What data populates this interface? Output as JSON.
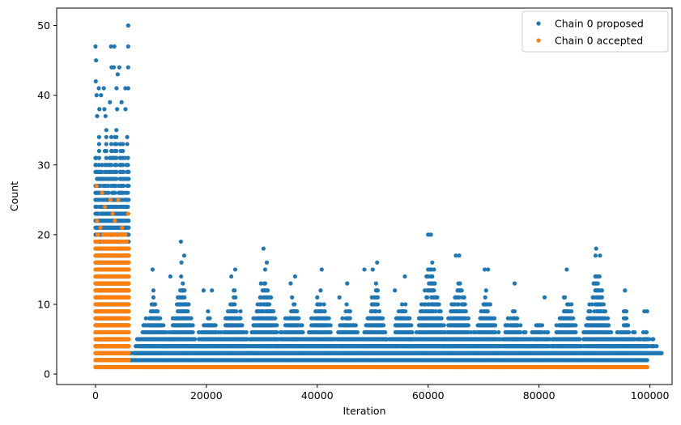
{
  "chart_data": {
    "type": "scatter",
    "title": "",
    "xlabel": "Iteration",
    "ylabel": "Count",
    "xlim": [
      -7000,
      104000
    ],
    "ylim": [
      -1.5,
      52.5
    ],
    "xticks": [
      0,
      20000,
      40000,
      60000,
      80000,
      100000
    ],
    "xtick_labels": [
      "0",
      "20000",
      "40000",
      "60000",
      "80000",
      "100000"
    ],
    "yticks": [
      0,
      10,
      20,
      30,
      40,
      50
    ],
    "ytick_labels": [
      "0",
      "10",
      "20",
      "30",
      "40",
      "50"
    ],
    "grid": false,
    "legend_position": "top-right",
    "series": [
      {
        "name": "Chain 0 proposed",
        "color": "#1f77b4",
        "marker": "circle",
        "bands": [
          {
            "x0": 0,
            "x1": 6000,
            "ymin": 1,
            "ymax": 36,
            "dense": true
          },
          {
            "x0": 6000,
            "x1": 100000,
            "ymin": 1,
            "ymax": 2,
            "dense": true
          }
        ],
        "clusters": [
          {
            "x": 3000,
            "top": 33
          },
          {
            "x": 10500,
            "top": 15
          },
          {
            "x": 15500,
            "top": 17
          },
          {
            "x": 20500,
            "top": 12
          },
          {
            "x": 25000,
            "top": 15
          },
          {
            "x": 30500,
            "top": 18
          },
          {
            "x": 35500,
            "top": 14
          },
          {
            "x": 40500,
            "top": 15
          },
          {
            "x": 45500,
            "top": 13
          },
          {
            "x": 50500,
            "top": 16
          },
          {
            "x": 55500,
            "top": 14
          },
          {
            "x": 60500,
            "top": 20
          },
          {
            "x": 65500,
            "top": 17
          },
          {
            "x": 70500,
            "top": 15
          },
          {
            "x": 75500,
            "top": 13
          },
          {
            "x": 80000,
            "top": 11
          },
          {
            "x": 85000,
            "top": 15
          },
          {
            "x": 90500,
            "top": 18
          },
          {
            "x": 95500,
            "top": 12
          },
          {
            "x": 99000,
            "top": 9
          }
        ],
        "points": [
          {
            "x": 0,
            "y": 47
          },
          {
            "x": 100,
            "y": 45
          },
          {
            "x": 50,
            "y": 42
          },
          {
            "x": 200,
            "y": 40
          },
          {
            "x": 600,
            "y": 41
          },
          {
            "x": 1000,
            "y": 40
          },
          {
            "x": 1500,
            "y": 41
          },
          {
            "x": 2800,
            "y": 47
          },
          {
            "x": 3400,
            "y": 47
          },
          {
            "x": 2900,
            "y": 44
          },
          {
            "x": 3300,
            "y": 44
          },
          {
            "x": 4000,
            "y": 43
          },
          {
            "x": 4300,
            "y": 44
          },
          {
            "x": 3800,
            "y": 41
          },
          {
            "x": 5400,
            "y": 41
          },
          {
            "x": 5900,
            "y": 50
          },
          {
            "x": 5900,
            "y": 47
          },
          {
            "x": 5900,
            "y": 44
          },
          {
            "x": 5900,
            "y": 41
          },
          {
            "x": 700,
            "y": 38
          },
          {
            "x": 1600,
            "y": 38
          },
          {
            "x": 2600,
            "y": 39
          },
          {
            "x": 4700,
            "y": 39
          },
          {
            "x": 5400,
            "y": 38
          },
          {
            "x": 300,
            "y": 37
          },
          {
            "x": 1800,
            "y": 37
          },
          {
            "x": 3900,
            "y": 38
          },
          {
            "x": 10300,
            "y": 15
          },
          {
            "x": 13500,
            "y": 14
          },
          {
            "x": 15400,
            "y": 19
          },
          {
            "x": 16000,
            "y": 17
          },
          {
            "x": 15500,
            "y": 16
          },
          {
            "x": 19500,
            "y": 12
          },
          {
            "x": 21000,
            "y": 12
          },
          {
            "x": 24500,
            "y": 14
          },
          {
            "x": 25200,
            "y": 15
          },
          {
            "x": 30300,
            "y": 18
          },
          {
            "x": 30900,
            "y": 16
          },
          {
            "x": 35200,
            "y": 13
          },
          {
            "x": 36000,
            "y": 14
          },
          {
            "x": 40800,
            "y": 15
          },
          {
            "x": 44000,
            "y": 11
          },
          {
            "x": 45400,
            "y": 13
          },
          {
            "x": 48500,
            "y": 15
          },
          {
            "x": 50000,
            "y": 15
          },
          {
            "x": 50800,
            "y": 16
          },
          {
            "x": 55800,
            "y": 14
          },
          {
            "x": 54000,
            "y": 12
          },
          {
            "x": 59700,
            "y": 14
          },
          {
            "x": 60000,
            "y": 20
          },
          {
            "x": 60500,
            "y": 20
          },
          {
            "x": 60300,
            "y": 15
          },
          {
            "x": 65000,
            "y": 17
          },
          {
            "x": 65600,
            "y": 17
          },
          {
            "x": 70200,
            "y": 15
          },
          {
            "x": 70800,
            "y": 15
          },
          {
            "x": 75600,
            "y": 13
          },
          {
            "x": 81000,
            "y": 11
          },
          {
            "x": 85000,
            "y": 15
          },
          {
            "x": 90300,
            "y": 18
          },
          {
            "x": 90200,
            "y": 17
          },
          {
            "x": 91000,
            "y": 17
          },
          {
            "x": 95500,
            "y": 12
          },
          {
            "x": 99000,
            "y": 9
          },
          {
            "x": 99500,
            "y": 9
          }
        ]
      },
      {
        "name": "Chain 0 accepted",
        "color": "#ff7f0e",
        "marker": "circle",
        "bands": [
          {
            "x0": 0,
            "x1": 6000,
            "ymin": 1,
            "ymax": 19,
            "dense": true
          },
          {
            "x0": 6000,
            "x1": 100000,
            "ymin": 1,
            "ymax": 1,
            "dense": true
          }
        ],
        "points": [
          {
            "x": 200,
            "y": 27
          },
          {
            "x": 1200,
            "y": 26
          },
          {
            "x": 2700,
            "y": 25
          },
          {
            "x": 4100,
            "y": 25
          },
          {
            "x": 300,
            "y": 22
          },
          {
            "x": 1700,
            "y": 24
          },
          {
            "x": 3100,
            "y": 23
          },
          {
            "x": 3500,
            "y": 22
          },
          {
            "x": 5900,
            "y": 23
          },
          {
            "x": 900,
            "y": 21
          },
          {
            "x": 2200,
            "y": 20
          },
          {
            "x": 4800,
            "y": 21
          },
          {
            "x": 5300,
            "y": 20
          },
          {
            "x": 1400,
            "y": 20
          }
        ]
      }
    ]
  }
}
